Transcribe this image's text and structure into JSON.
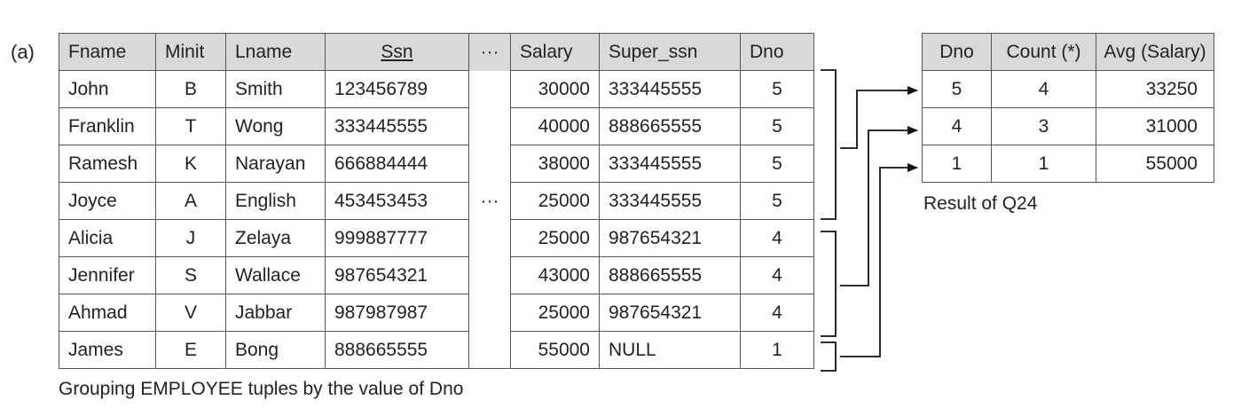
{
  "figure_label": "(a)",
  "employee_table": {
    "headers": [
      "Fname",
      "Minit",
      "Lname",
      "Ssn",
      "···",
      "Salary",
      "Super_ssn",
      "Dno"
    ],
    "rows": [
      [
        "John",
        "B",
        "Smith",
        "123456789",
        "",
        "30000",
        "333445555",
        "5"
      ],
      [
        "Franklin",
        "T",
        "Wong",
        "333445555",
        "",
        "40000",
        "888665555",
        "5"
      ],
      [
        "Ramesh",
        "K",
        "Narayan",
        "666884444",
        "",
        "38000",
        "333445555",
        "5"
      ],
      [
        "Joyce",
        "A",
        "English",
        "453453453",
        "···",
        "25000",
        "333445555",
        "5"
      ],
      [
        "Alicia",
        "J",
        "Zelaya",
        "999887777",
        "",
        "25000",
        "987654321",
        "4"
      ],
      [
        "Jennifer",
        "S",
        "Wallace",
        "987654321",
        "",
        "43000",
        "888665555",
        "4"
      ],
      [
        "Ahmad",
        "V",
        "Jabbar",
        "987987987",
        "",
        "25000",
        "987654321",
        "4"
      ],
      [
        "James",
        "E",
        "Bong",
        "888665555",
        "",
        "55000",
        "NULL",
        "1"
      ]
    ],
    "caption": "Grouping EMPLOYEE tuples by the value of Dno"
  },
  "result_table": {
    "headers": [
      "Dno",
      "Count (*)",
      "Avg (Salary)"
    ],
    "rows": [
      [
        "5",
        "4",
        "33250"
      ],
      [
        "4",
        "3",
        "31000"
      ],
      [
        "1",
        "1",
        "55000"
      ]
    ],
    "caption": "Result of Q24"
  }
}
